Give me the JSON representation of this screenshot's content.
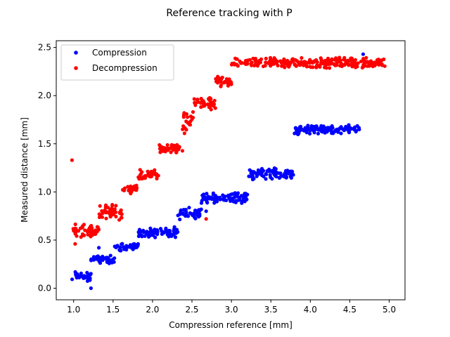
{
  "chart_data": {
    "type": "scatter",
    "title": "Reference tracking with P",
    "xlabel": "Compression reference [mm]",
    "ylabel": "Measured distance [mm]",
    "xlim": [
      0.78,
      5.2
    ],
    "ylim": [
      -0.12,
      2.57
    ],
    "xticks": [
      "1.0",
      "1.5",
      "2.0",
      "2.5",
      "3.0",
      "3.5",
      "4.0",
      "4.5",
      "5.0"
    ],
    "yticks": [
      "0.0",
      "0.5",
      "1.0",
      "1.5",
      "2.0",
      "2.5"
    ],
    "grid": false,
    "legend": "top-left",
    "series": [
      {
        "name": "Compression",
        "color": "#0000ff",
        "clusters": [
          {
            "x": [
              0.98,
              1.22
            ],
            "y": [
              0.05,
              0.2
            ]
          },
          {
            "x": [
              1.22,
              1.52
            ],
            "y": [
              0.25,
              0.35
            ]
          },
          {
            "x": [
              1.52,
              1.82
            ],
            "y": [
              0.38,
              0.48
            ]
          },
          {
            "x": [
              1.82,
              2.32
            ],
            "y": [
              0.52,
              0.64
            ]
          },
          {
            "x": [
              2.32,
              2.62
            ],
            "y": [
              0.7,
              0.84
            ]
          },
          {
            "x": [
              2.62,
              3.22
            ],
            "y": [
              0.88,
              1.0
            ]
          },
          {
            "x": [
              3.22,
              3.8
            ],
            "y": [
              1.12,
              1.26
            ]
          },
          {
            "x": [
              3.8,
              3.85
            ],
            "y": [
              1.54,
              1.72
            ]
          },
          {
            "x": [
              3.85,
              4.62
            ],
            "y": [
              1.6,
              1.7
            ]
          }
        ],
        "outliers": [
          [
            1.22,
            0.0
          ],
          [
            1.32,
            0.42
          ],
          [
            2.68,
            0.8
          ],
          [
            4.67,
            2.43
          ]
        ]
      },
      {
        "name": "Decompression",
        "color": "#ff0000",
        "clusters": [
          {
            "x": [
              0.98,
              1.32
            ],
            "y": [
              0.52,
              0.68
            ]
          },
          {
            "x": [
              1.32,
              1.62
            ],
            "y": [
              0.7,
              0.88
            ]
          },
          {
            "x": [
              1.62,
              1.82
            ],
            "y": [
              0.98,
              1.08
            ]
          },
          {
            "x": [
              1.82,
              2.08
            ],
            "y": [
              1.12,
              1.24
            ]
          },
          {
            "x": [
              2.08,
              2.38
            ],
            "y": [
              1.4,
              1.5
            ]
          },
          {
            "x": [
              2.38,
              2.52
            ],
            "y": [
              1.6,
              1.85
            ]
          },
          {
            "x": [
              2.52,
              2.8
            ],
            "y": [
              1.85,
              2.0
            ]
          },
          {
            "x": [
              2.8,
              3.0
            ],
            "y": [
              2.08,
              2.2
            ]
          },
          {
            "x": [
              3.0,
              4.95
            ],
            "y": [
              2.28,
              2.4
            ]
          }
        ],
        "outliers": [
          [
            0.98,
            1.33
          ],
          [
            1.02,
            0.46
          ],
          [
            2.68,
            0.72
          ]
        ]
      }
    ]
  }
}
